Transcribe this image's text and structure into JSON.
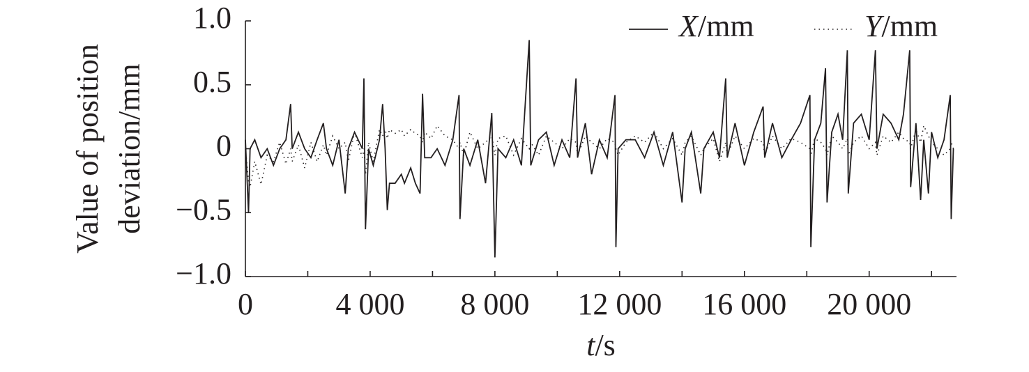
{
  "chart_data": {
    "type": "line",
    "x_label": "t/s",
    "y_label": [
      "Value of position",
      "deviation/mm"
    ],
    "xlim": [
      0,
      22800
    ],
    "ylim": [
      -1.0,
      1.0
    ],
    "xticks": [
      0,
      {
        "value": 4000,
        "label": "4 000"
      },
      {
        "value": 8000,
        "label": "8 000"
      },
      {
        "value": 12000,
        "label": "12 000"
      },
      {
        "value": 16000,
        "label": "16 000"
      },
      {
        "value": 20000,
        "label": "20 000"
      }
    ],
    "x_minor_ticks": [
      2000,
      6000,
      10000,
      14000,
      18000,
      22000
    ],
    "yticks": [
      {
        "value": 1.0,
        "label": "1.0"
      },
      {
        "value": 0.5,
        "label": "0.5"
      },
      0,
      {
        "value": -0.5,
        "label": "−0.5"
      },
      {
        "value": -1.0,
        "label": "−1.0"
      }
    ],
    "grid": false,
    "legend": "top-right",
    "x": [
      0,
      100,
      150,
      300,
      500,
      700,
      900,
      1100,
      1300,
      1450,
      1500,
      1700,
      1900,
      2100,
      2300,
      2500,
      2600,
      2800,
      3000,
      3200,
      3300,
      3500,
      3750,
      3800,
      3850,
      3950,
      4100,
      4300,
      4400,
      4480,
      4550,
      4620,
      4800,
      5000,
      5100,
      5300,
      5450,
      5600,
      5680,
      5750,
      5950,
      6150,
      6400,
      6650,
      6850,
      6880,
      7000,
      7200,
      7450,
      7700,
      7900,
      8000,
      8100,
      8350,
      8600,
      8850,
      9100,
      9150,
      9400,
      9650,
      9900,
      10150,
      10400,
      10600,
      10650,
      10900,
      11100,
      11350,
      11600,
      11850,
      11880,
      11950,
      12200,
      12500,
      12800,
      13100,
      13400,
      13700,
      14000,
      14100,
      14300,
      14600,
      14700,
      15000,
      15200,
      15400,
      15450,
      15700,
      16000,
      16300,
      16600,
      16650,
      16900,
      17200,
      17500,
      17800,
      18100,
      18130,
      18250,
      18450,
      18600,
      18650,
      18800,
      19000,
      19150,
      19300,
      19330,
      19500,
      19750,
      20000,
      20200,
      20250,
      20450,
      20700,
      20950,
      21100,
      21300,
      21330,
      21500,
      21650,
      21750,
      21900,
      22000,
      22200,
      22400,
      22600,
      22630,
      22700
    ],
    "series": [
      {
        "name": "X/mm",
        "color": "#231f20",
        "style": "solid",
        "values": [
          0.07,
          -0.5,
          0.0,
          0.07,
          -0.07,
          0.0,
          -0.13,
          0.0,
          0.07,
          0.35,
          0.0,
          0.13,
          0.0,
          -0.07,
          0.07,
          0.2,
          0.0,
          -0.13,
          0.07,
          -0.35,
          0.0,
          0.13,
          0.0,
          0.55,
          -0.63,
          0.0,
          -0.13,
          0.07,
          0.35,
          0.0,
          -0.48,
          -0.27,
          -0.27,
          -0.2,
          -0.27,
          -0.15,
          -0.27,
          -0.35,
          0.43,
          -0.07,
          -0.07,
          0.0,
          -0.13,
          0.07,
          0.42,
          -0.55,
          0.0,
          -0.13,
          0.07,
          -0.27,
          0.28,
          -0.85,
          0.0,
          -0.07,
          0.07,
          -0.13,
          0.85,
          -0.13,
          0.07,
          0.13,
          -0.13,
          0.07,
          -0.07,
          0.55,
          -0.07,
          0.2,
          -0.2,
          0.07,
          -0.07,
          0.42,
          -0.77,
          0.0,
          0.07,
          0.07,
          -0.07,
          0.13,
          -0.13,
          0.13,
          -0.42,
          0.0,
          0.13,
          -0.35,
          0.0,
          0.13,
          -0.07,
          0.55,
          -0.07,
          0.2,
          -0.13,
          0.13,
          0.33,
          -0.07,
          0.2,
          -0.07,
          0.07,
          0.2,
          0.42,
          -0.77,
          0.07,
          0.2,
          0.63,
          -0.42,
          0.13,
          0.27,
          0.07,
          0.77,
          -0.35,
          0.2,
          0.27,
          0.07,
          0.77,
          0.0,
          0.27,
          0.2,
          0.07,
          0.27,
          0.77,
          -0.3,
          0.2,
          -0.4,
          0.07,
          -0.35,
          0.13,
          -0.07,
          0.07,
          0.42,
          -0.55,
          0.0
        ]
      },
      {
        "name": "Y/mm",
        "color": "#231f20",
        "style": "dotted",
        "values": [
          0.0,
          -0.25,
          -0.3,
          -0.1,
          -0.28,
          -0.05,
          -0.1,
          0.05,
          -0.12,
          0.0,
          -0.1,
          0.03,
          -0.15,
          0.05,
          -0.1,
          0.03,
          -0.05,
          0.1,
          0.0,
          0.05,
          -0.1,
          0.13,
          -0.07,
          0.0,
          -0.2,
          0.05,
          -0.1,
          0.15,
          0.1,
          0.15,
          0.08,
          0.15,
          0.12,
          0.15,
          0.1,
          0.15,
          0.12,
          0.1,
          0.05,
          0.13,
          0.08,
          0.18,
          0.1,
          0.07,
          0.0,
          0.05,
          -0.05,
          0.13,
          0.0,
          0.05,
          0.1,
          -0.05,
          0.08,
          0.1,
          -0.05,
          0.08,
          0.0,
          0.05,
          -0.05,
          0.1,
          0.05,
          0.0,
          0.08,
          0.05,
          -0.05,
          0.1,
          0.05,
          0.0,
          0.08,
          0.05,
          0.0,
          -0.05,
          0.05,
          0.1,
          0.05,
          0.13,
          0.0,
          0.08,
          -0.05,
          0.05,
          0.1,
          -0.05,
          0.0,
          0.08,
          -0.1,
          0.05,
          -0.05,
          0.1,
          0.0,
          0.08,
          0.05,
          -0.05,
          0.1,
          0.0,
          0.08,
          0.05,
          0.0,
          -0.05,
          0.08,
          0.05,
          0.0,
          -0.05,
          0.1,
          0.05,
          0.0,
          0.08,
          -0.05,
          0.05,
          0.1,
          0.0,
          0.05,
          -0.05,
          0.1,
          0.05,
          0.13,
          0.08,
          0.05,
          0.0,
          0.15,
          0.05,
          0.18,
          0.1,
          0.05,
          0.0,
          -0.05,
          0.0,
          0.05,
          0.0
        ]
      }
    ]
  }
}
